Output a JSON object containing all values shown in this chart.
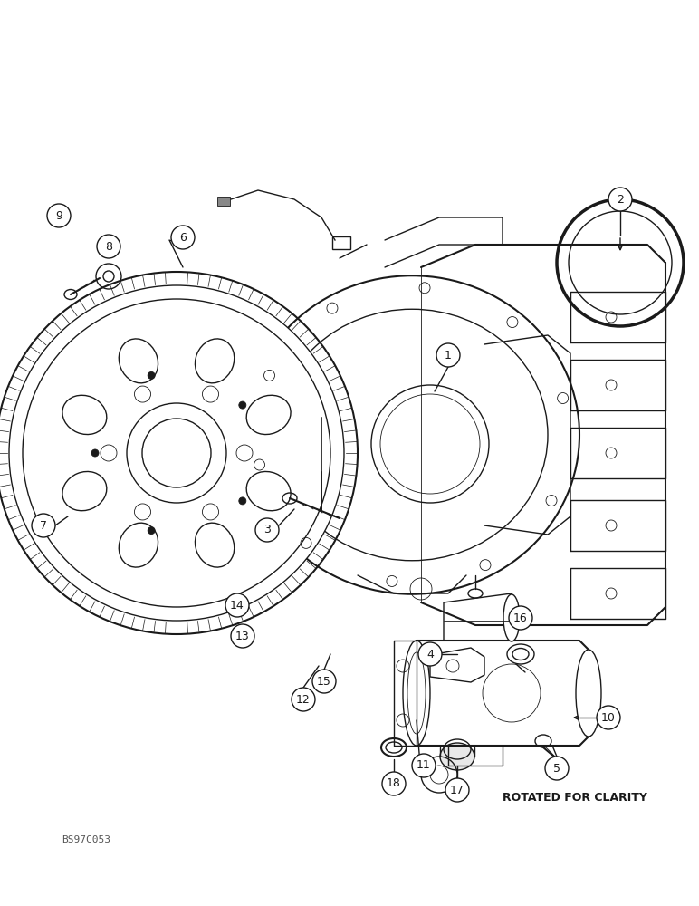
{
  "bg_color": "#ffffff",
  "line_color": "#1a1a1a",
  "ref_code": "BS97C053",
  "rotated_text": "ROTATED FOR CLARITY",
  "figsize": [
    7.72,
    10.0
  ],
  "dpi": 100
}
